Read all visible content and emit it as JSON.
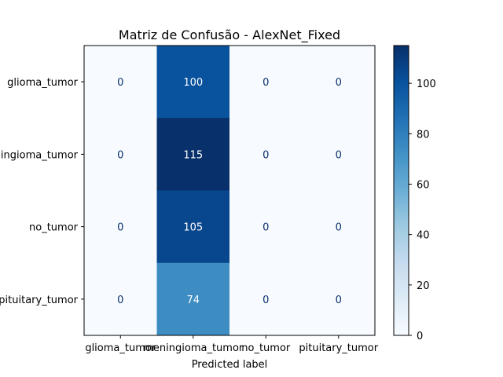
{
  "chart_data": {
    "type": "heatmap",
    "title": "Matriz de Confusão - AlexNet_Fixed",
    "xlabel": "Predicted label",
    "ylabel": "",
    "row_labels": [
      "glioma_tumor",
      "meningioma_tumor",
      "no_tumor",
      "pituitary_tumor"
    ],
    "col_labels": [
      "glioma_tumor",
      "meningioma_tumor",
      "no_tumor",
      "pituitary_tumor"
    ],
    "values": [
      [
        0,
        100,
        0,
        0
      ],
      [
        0,
        115,
        0,
        0
      ],
      [
        0,
        105,
        0,
        0
      ],
      [
        0,
        74,
        0,
        0
      ]
    ],
    "colormap": "Blues",
    "colorbar": {
      "range": [
        0,
        115
      ],
      "ticks": [
        0,
        20,
        40,
        60,
        80,
        100
      ]
    },
    "colors": {
      "low": "#f7fbff",
      "high": "#08306b",
      "text_dark": "#08306b",
      "text_light": "#ffffff"
    }
  }
}
